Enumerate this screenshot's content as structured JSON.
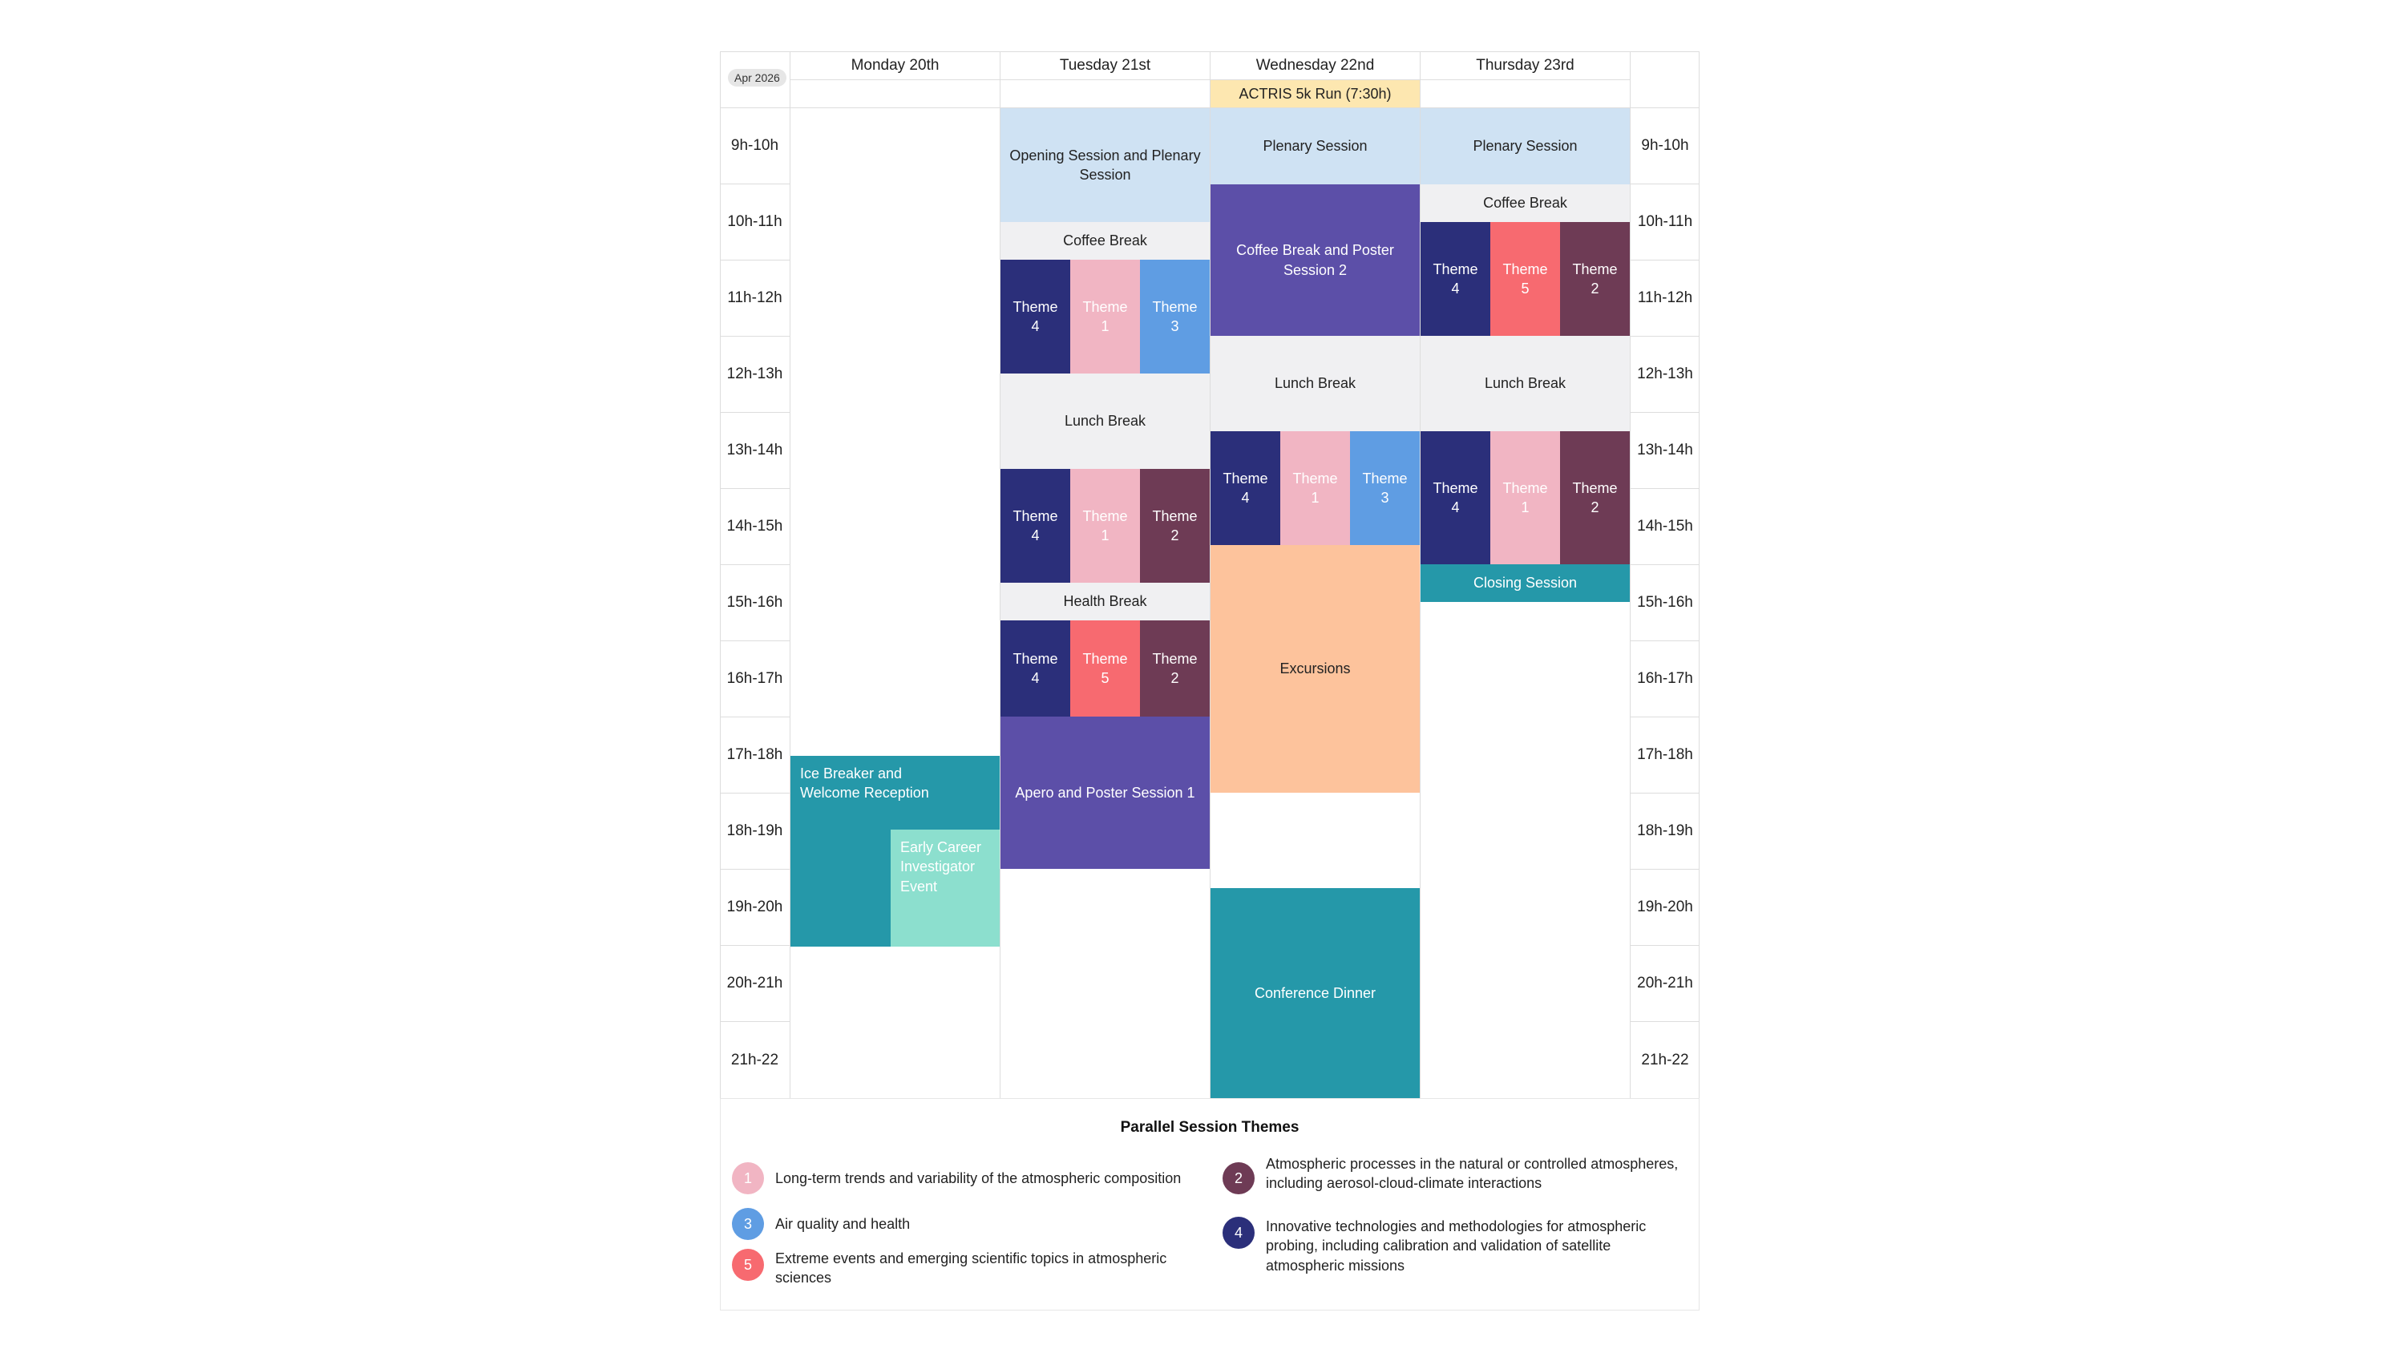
{
  "calendar": {
    "month_badge": "Apr 2026",
    "days": [
      "Monday 20th",
      "Tuesday 21st",
      "Wednesday 22nd",
      "Thursday 23rd"
    ],
    "hours": [
      "9h-10h",
      "10h-11h",
      "11h-12h",
      "12h-13h",
      "13h-14h",
      "14h-15h",
      "15h-16h",
      "16h-17h",
      "17h-18h",
      "18h-19h",
      "19h-20h",
      "20h-21h",
      "21h-22"
    ]
  },
  "colors": {
    "plenary": "#cfe2f3",
    "break": "#f0f0f2",
    "theme1": "#f1b5c3",
    "theme2": "#6e3b55",
    "theme3": "#5f9de3",
    "theme4": "#2b2f7a",
    "theme5": "#f76a70",
    "poster": "#5c4fa8",
    "teal": "#2598a9",
    "early_career": "#8cdfce",
    "excursions": "#fdc39c",
    "run": "#fde7b0"
  },
  "events": {
    "mon_icebreaker": "Ice Breaker and Welcome Reception",
    "mon_early_career": "Early Career Investigator Event",
    "tue_opening": "Opening Session and Plenary Session",
    "tue_coffee": "Coffee Break",
    "tue_a_theme4": "Theme 4",
    "tue_a_theme1": "Theme 1",
    "tue_a_theme3": "Theme 3",
    "tue_lunch": "Lunch Break",
    "tue_b_theme4": "Theme 4",
    "tue_b_theme1": "Theme 1",
    "tue_b_theme2": "Theme 2",
    "tue_health": "Health Break",
    "tue_c_theme4": "Theme 4",
    "tue_c_theme5": "Theme 5",
    "tue_c_theme2": "Theme 2",
    "tue_apero": "Apero and Poster Session 1",
    "wed_run": "ACTRIS 5k Run (7:30h)",
    "wed_plenary": "Plenary Session",
    "wed_coffee_poster": "Coffee Break and Poster Session 2",
    "wed_lunch": "Lunch Break",
    "wed_theme4": "Theme 4",
    "wed_theme1": "Theme 1",
    "wed_theme3": "Theme 3",
    "wed_excursions": "Excursions",
    "wed_dinner": "Conference Dinner",
    "thu_plenary": "Plenary Session",
    "thu_coffee": "Coffee Break",
    "thu_a_theme4": "Theme 4",
    "thu_a_theme5": "Theme 5",
    "thu_a_theme2": "Theme 2",
    "thu_lunch": "Lunch Break",
    "thu_b_theme4": "Theme 4",
    "thu_b_theme1": "Theme 1",
    "thu_b_theme2": "Theme 2",
    "thu_closing": "Closing Session"
  },
  "legend": {
    "title": "Parallel Session Themes",
    "items": [
      {
        "num": "1",
        "text": "Long-term trends and variability of the atmospheric composition"
      },
      {
        "num": "2",
        "text": "Atmospheric processes in the natural or controlled atmospheres, including aerosol-cloud-climate interactions"
      },
      {
        "num": "3",
        "text": "Air quality and health"
      },
      {
        "num": "4",
        "text": "Innovative technologies and methodologies for atmospheric probing, including calibration and validation of satellite atmospheric missions"
      },
      {
        "num": "5",
        "text": "Extreme events and emerging scientific topics in atmospheric sciences"
      }
    ]
  }
}
